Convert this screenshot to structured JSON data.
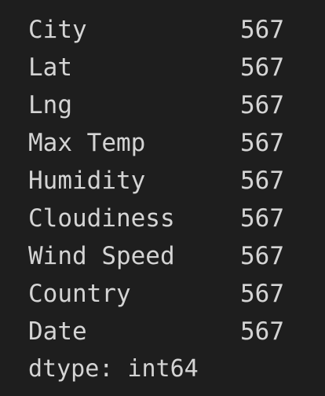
{
  "series": {
    "rows": [
      {
        "label": "City",
        "value": "567"
      },
      {
        "label": "Lat",
        "value": "567"
      },
      {
        "label": "Lng",
        "value": "567"
      },
      {
        "label": "Max Temp",
        "value": "567"
      },
      {
        "label": "Humidity",
        "value": "567"
      },
      {
        "label": "Cloudiness",
        "value": "567"
      },
      {
        "label": "Wind Speed",
        "value": "567"
      },
      {
        "label": "Country",
        "value": "567"
      },
      {
        "label": "Date",
        "value": "567"
      }
    ],
    "dtype": "dtype: int64"
  },
  "colors": {
    "background": "#1e1e1e",
    "text": "#d4d4d4"
  }
}
